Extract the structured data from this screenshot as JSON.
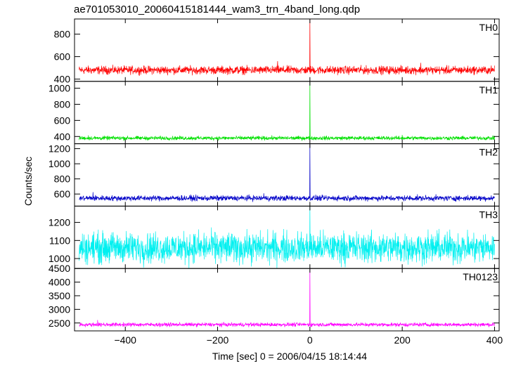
{
  "chart_data": {
    "type": "line",
    "title": "ae701053010_20060415181444_wam3_trn_4band_long.qdp",
    "xlabel": "Time [sec] 0 = 2006/04/15 18:14:44",
    "ylabel": "Counts/sec",
    "xlim": [
      -510,
      410
    ],
    "xticks": [
      -400,
      -200,
      0,
      200,
      400
    ],
    "xticklabels": [
      "−400",
      "−200",
      "0",
      "200",
      "400"
    ],
    "panels": [
      {
        "name": "TH0",
        "color": "#ff0000",
        "ylim": [
          380,
          935
        ],
        "yticks": [
          400,
          600,
          800
        ],
        "series": {
          "baseline": 480,
          "noise": 18,
          "spikes": [
            {
              "x": 0,
              "y": 935
            },
            {
              "x": -70,
              "y": 560
            },
            {
              "x": 240,
              "y": 545
            }
          ]
        }
      },
      {
        "name": "TH1",
        "color": "#00e000",
        "ylim": [
          310,
          1085
        ],
        "yticks": [
          400,
          600,
          800,
          1000
        ],
        "series": {
          "baseline": 380,
          "noise": 12,
          "spikes": [
            {
              "x": 0,
              "y": 1085
            },
            {
              "x": -480,
              "y": 415
            },
            {
              "x": 200,
              "y": 418
            }
          ]
        }
      },
      {
        "name": "TH2",
        "color": "#0000c8",
        "ylim": [
          440,
          1265
        ],
        "yticks": [
          600,
          800,
          1000,
          1200
        ],
        "series": {
          "baseline": 545,
          "noise": 18,
          "spikes": [
            {
              "x": 0,
              "y": 1265
            },
            {
              "x": -470,
              "y": 625
            },
            {
              "x": -100,
              "y": 610
            }
          ]
        }
      },
      {
        "name": "TH3",
        "color": "#00f0f0",
        "ylim": [
          945,
          1290
        ],
        "yticks": [
          1000,
          1100,
          1200
        ],
        "series": {
          "baseline": 1060,
          "noise": 42,
          "spikes": [
            {
              "x": 0,
              "y": 1290
            }
          ]
        }
      },
      {
        "name": "TH0123",
        "color": "#ff00ff",
        "ylim": [
          2210,
          4500
        ],
        "yticks": [
          2500,
          3000,
          3500,
          4000,
          4500
        ],
        "series": {
          "baseline": 2440,
          "noise": 35,
          "spikes": [
            {
              "x": 0,
              "y": 4500
            },
            {
              "x": -460,
              "y": 2610
            }
          ]
        }
      }
    ]
  }
}
